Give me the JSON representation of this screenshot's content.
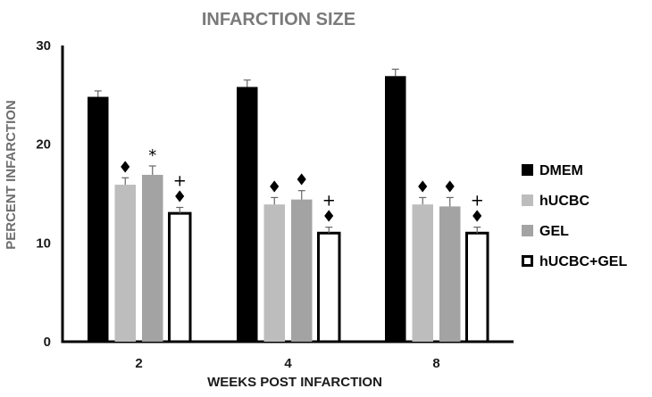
{
  "chart_data": {
    "type": "bar",
    "title": "INFARCTION SIZE",
    "xlabel": "WEEKS POST INFARCTION",
    "ylabel": "PERCENT INFARCTION",
    "ylim": [
      0,
      30
    ],
    "yticks": [
      "0",
      "10",
      "20",
      "30"
    ],
    "categories": [
      "2",
      "4",
      "8"
    ],
    "legend_position": "right",
    "grid": false,
    "series": [
      {
        "name": "DMEM",
        "values": [
          24.8,
          25.8,
          26.9
        ],
        "errors": [
          0.6,
          0.7,
          0.7
        ],
        "color": "#000000",
        "marks": [
          [],
          [],
          []
        ]
      },
      {
        "name": "hUCBC",
        "values": [
          15.9,
          13.9,
          13.9
        ],
        "errors": [
          0.7,
          0.7,
          0.7
        ],
        "color": "#bdbdbd",
        "marks": [
          [
            "♦"
          ],
          [
            "♦"
          ],
          [
            "♦"
          ]
        ]
      },
      {
        "name": "GEL",
        "values": [
          16.9,
          14.4,
          13.7
        ],
        "errors": [
          0.9,
          0.9,
          0.9
        ],
        "color": "#a3a3a3",
        "marks": [
          [
            "*"
          ],
          [
            "♦"
          ],
          [
            "♦"
          ]
        ]
      },
      {
        "name": "hUCBC+GEL",
        "values": [
          13.0,
          11.0,
          11.0
        ],
        "errors": [
          0.6,
          0.6,
          0.6
        ],
        "color": "#ffffff",
        "marks": [
          [
            "+",
            "♦"
          ],
          [
            "+",
            "♦"
          ],
          [
            "+",
            "♦"
          ]
        ]
      }
    ]
  }
}
